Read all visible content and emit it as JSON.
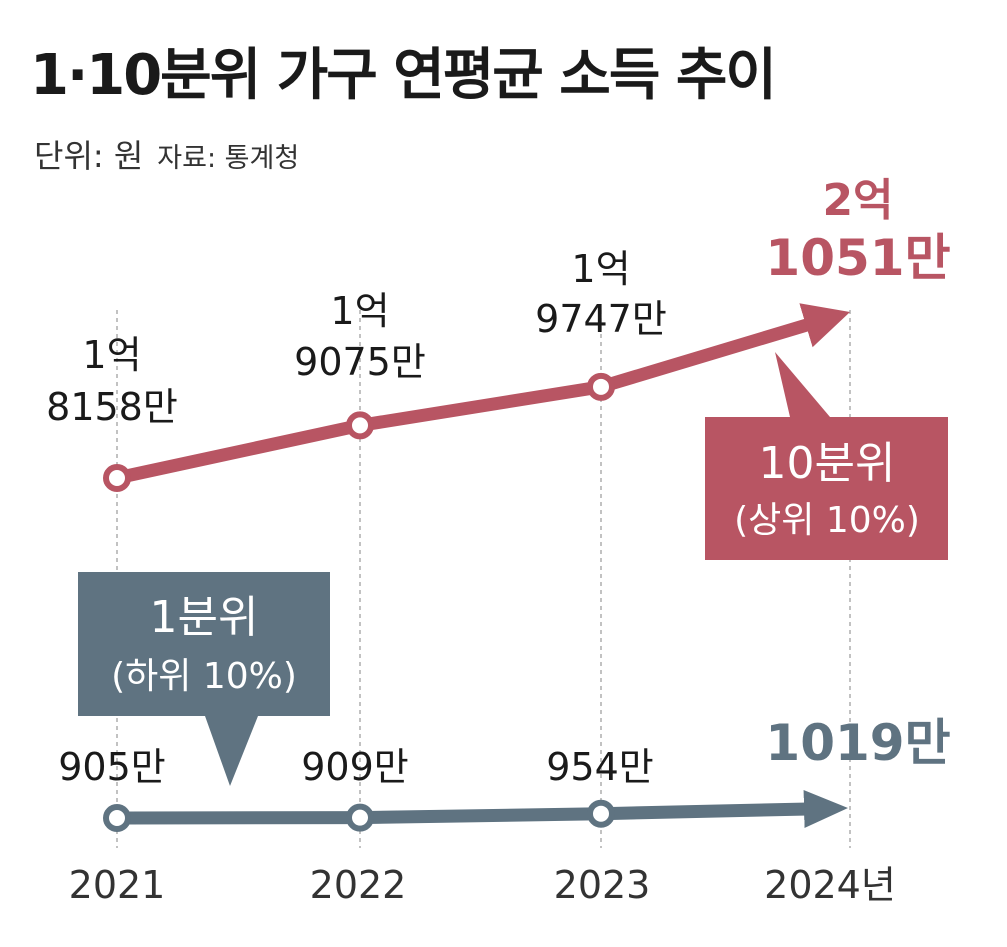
{
  "title": "1·10분위 가구 연평균 소득 추이",
  "unit": "단위: 원",
  "source": "자료: 통계청",
  "colors": {
    "top": "#b85563",
    "bottom": "#5f7381",
    "guide": "#9a9a9a"
  },
  "chart_data": {
    "type": "line",
    "x": [
      "2021",
      "2022",
      "2023",
      "2024"
    ],
    "x_suffix": "년",
    "unit": "원",
    "series": [
      {
        "name": "10분위",
        "name_sub": "(상위 10%)",
        "values": [
          181580000,
          190750000,
          197470000,
          210510000
        ],
        "labels": [
          [
            "1억",
            "8158만"
          ],
          [
            "1억",
            "9075만"
          ],
          [
            "1억",
            "9747만"
          ],
          [
            "2억",
            "1051만"
          ]
        ]
      },
      {
        "name": "1분위",
        "name_sub": "(하위 10%)",
        "values": [
          9050000,
          9090000,
          9540000,
          10190000
        ],
        "labels": [
          [
            "905만"
          ],
          [
            "909만"
          ],
          [
            "954만"
          ],
          [
            "1019만"
          ]
        ]
      }
    ]
  }
}
